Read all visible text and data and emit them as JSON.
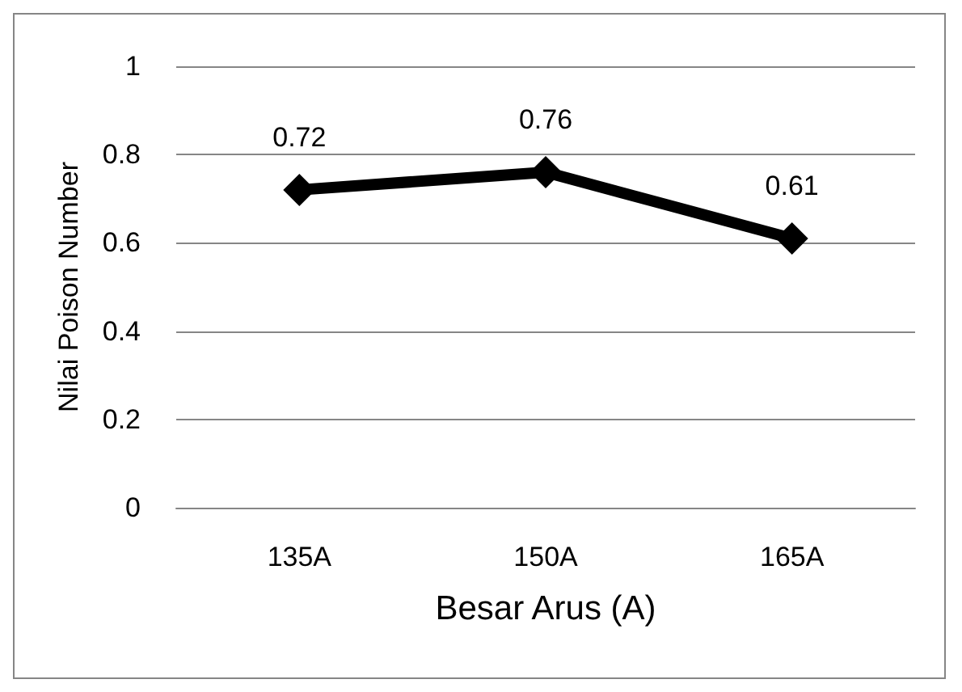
{
  "chart_data": {
    "type": "line",
    "xlabel": "Besar Arus (A)",
    "ylabel": "Nilai Poison Number",
    "categories": [
      "135A",
      "150A",
      "165A"
    ],
    "series": [
      {
        "color": "#000000",
        "values": [
          0.72,
          0.76,
          0.61
        ]
      }
    ],
    "ylim": [
      0,
      1
    ],
    "yticks": [
      0,
      0.2,
      0.4,
      0.6,
      0.8,
      1
    ],
    "grid": "y",
    "marker": "diamond",
    "line_style": "solid",
    "data_labels": true
  }
}
